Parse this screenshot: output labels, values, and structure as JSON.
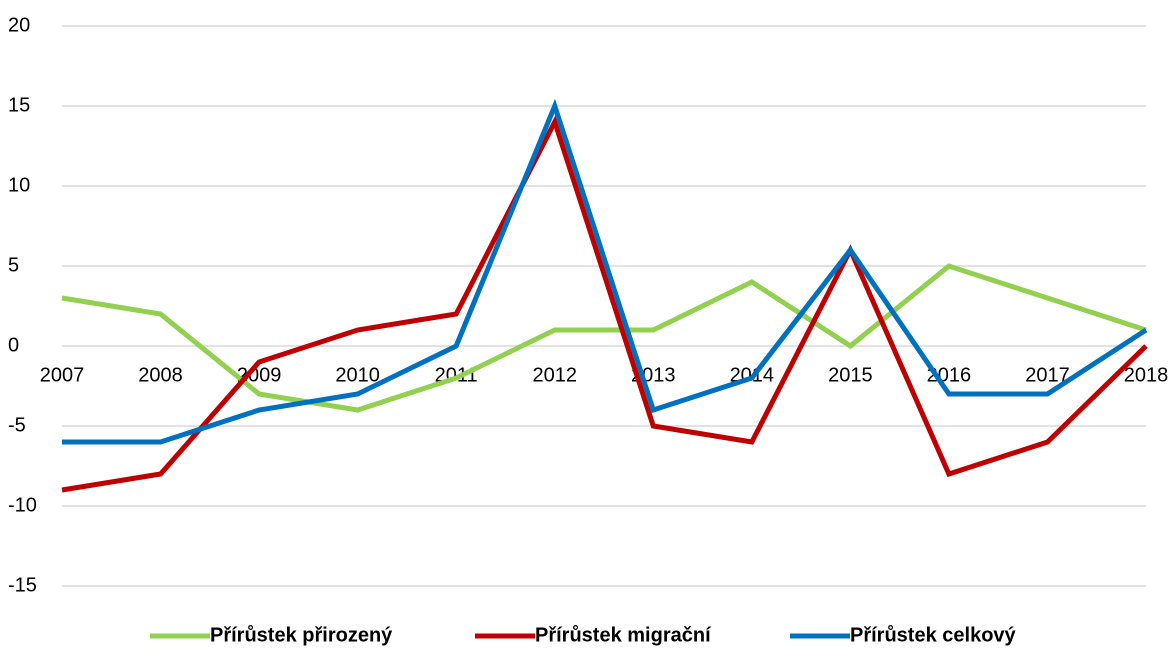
{
  "chart_data": {
    "type": "line",
    "categories": [
      "2007",
      "2008",
      "2009",
      "2010",
      "2011",
      "2012",
      "2013",
      "2014",
      "2015",
      "2016",
      "2017",
      "2018"
    ],
    "series": [
      {
        "name": "Přírůstek přirozený",
        "color": "#92d050",
        "values": [
          3,
          2,
          -3,
          -4,
          -2,
          1,
          1,
          4,
          0,
          5,
          3,
          1
        ]
      },
      {
        "name": "Přírůstek migrační",
        "color": "#c00000",
        "values": [
          -9,
          -8,
          -1,
          1,
          2,
          14,
          -5,
          -6,
          6,
          -8,
          -6,
          0
        ]
      },
      {
        "name": "Přírůstek celkový",
        "color": "#0070c0",
        "values": [
          -6,
          -6,
          -4,
          -3,
          0,
          15,
          -4,
          -2,
          6,
          -3,
          -3,
          1
        ]
      }
    ],
    "ylim": [
      -15,
      20
    ],
    "yticks": [
      -15,
      -10,
      -5,
      0,
      5,
      10,
      15,
      20
    ],
    "grid": true,
    "legend": "bottom"
  }
}
